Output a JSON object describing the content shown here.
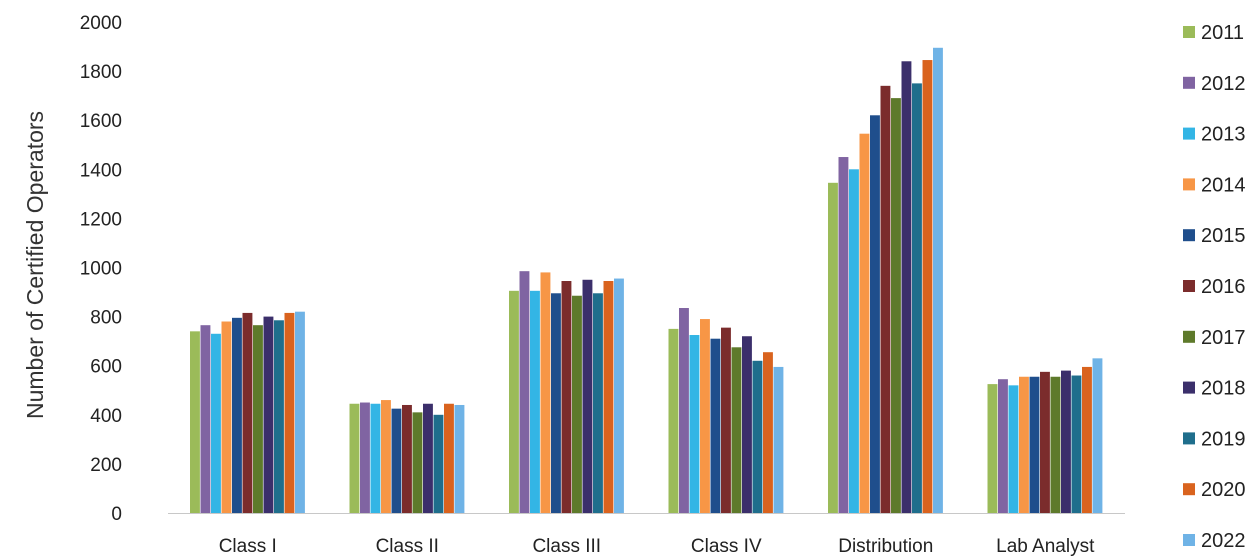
{
  "chart_data": {
    "type": "bar",
    "ylabel": "Number of Certified Operators",
    "xlabel": "",
    "ylim": [
      0,
      2000
    ],
    "yticks": [
      0,
      200,
      400,
      600,
      800,
      1000,
      1200,
      1400,
      1600,
      1800,
      2000
    ],
    "grid": false,
    "legend_position": "right",
    "categories": [
      "Class I",
      "Class II",
      "Class III",
      "Class IV",
      "Distribution",
      "Lab Analyst"
    ],
    "series": [
      {
        "name": "2011",
        "color": "#9BBB59",
        "values": [
          740,
          445,
          905,
          750,
          1345,
          525
        ]
      },
      {
        "name": "2012",
        "color": "#8064A2",
        "values": [
          765,
          450,
          985,
          835,
          1450,
          545
        ]
      },
      {
        "name": "2013",
        "color": "#33B5E5",
        "values": [
          730,
          445,
          905,
          725,
          1400,
          520
        ]
      },
      {
        "name": "2014",
        "color": "#F79646",
        "values": [
          780,
          460,
          980,
          790,
          1545,
          555
        ]
      },
      {
        "name": "2015",
        "color": "#1F4E8C",
        "values": [
          795,
          425,
          895,
          710,
          1620,
          555
        ]
      },
      {
        "name": "2016",
        "color": "#7B2C2C",
        "values": [
          815,
          440,
          945,
          755,
          1740,
          575
        ]
      },
      {
        "name": "2017",
        "color": "#5E7A2B",
        "values": [
          765,
          410,
          885,
          675,
          1690,
          555
        ]
      },
      {
        "name": "2018",
        "color": "#3B2F6B",
        "values": [
          800,
          445,
          950,
          720,
          1840,
          580
        ]
      },
      {
        "name": "2019",
        "color": "#1F6E8C",
        "values": [
          785,
          400,
          895,
          620,
          1750,
          560
        ]
      },
      {
        "name": "2020",
        "color": "#D9631E",
        "values": [
          815,
          445,
          945,
          655,
          1845,
          595
        ]
      },
      {
        "name": "2022",
        "color": "#6FB3E6",
        "values": [
          820,
          440,
          955,
          595,
          1895,
          630
        ]
      }
    ]
  }
}
